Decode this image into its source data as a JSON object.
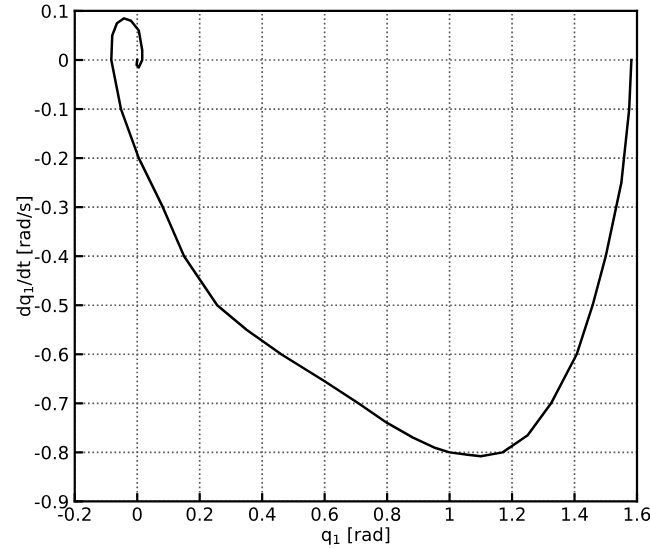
{
  "chart_data": {
    "type": "line",
    "xlabel": "q$_{1}$ [rad]",
    "ylabel": "dq$_{1}$/dt [rad/s]",
    "series": [
      {
        "color": "#000000",
        "x": [
          1.582,
          1.575,
          1.55,
          1.5,
          1.458,
          1.407,
          1.325,
          1.25,
          1.17,
          1.1,
          1.058,
          1.0,
          0.95,
          0.883,
          0.8,
          0.708,
          0.6,
          0.461,
          0.35,
          0.256,
          0.15,
          0.082,
          0.005,
          -0.052,
          -0.083,
          -0.08,
          -0.065,
          -0.042,
          -0.02,
          0.005,
          0.016,
          0.016,
          0.005,
          -0.002,
          0.0
        ],
        "values": [
          0.0,
          -0.1,
          -0.25,
          -0.4,
          -0.5,
          -0.6,
          -0.7,
          -0.765,
          -0.8,
          -0.808,
          -0.805,
          -0.8,
          -0.79,
          -0.77,
          -0.74,
          -0.7,
          -0.655,
          -0.6,
          -0.55,
          -0.5,
          -0.4,
          -0.3,
          -0.2,
          -0.1,
          0.0,
          0.05,
          0.075,
          0.085,
          0.08,
          0.06,
          0.02,
          0.0,
          -0.015,
          -0.01,
          0.0
        ]
      }
    ],
    "xlim": [
      -0.2,
      1.6
    ],
    "xticks": [
      -0.2,
      0,
      0.2,
      0.4,
      0.6,
      0.8,
      1,
      1.2,
      1.4,
      1.6
    ],
    "ylim": [
      -0.9,
      0.1
    ],
    "yticks": [
      -0.9,
      -0.8,
      -0.7,
      -0.6,
      -0.5,
      -0.4,
      -0.3,
      -0.2,
      -0.1,
      0,
      0.1
    ],
    "grid": true,
    "line_style": "solid",
    "marker": "none",
    "legend": false
  }
}
